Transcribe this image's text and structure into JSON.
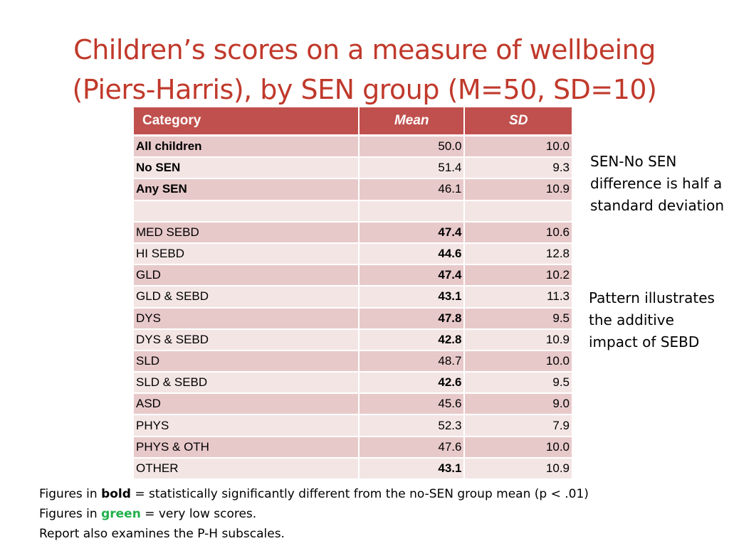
{
  "title": {
    "line1": "Children’s scores on a measure of wellbeing",
    "line2": "(Piers-Harris), by SEN group (M=50, SD=10)"
  },
  "colors": {
    "title": "#c0392b",
    "header_bg": "#c0504d",
    "row_dark": "#e8c9ca",
    "row_light": "#f4e5e5",
    "green": "#22b14c"
  },
  "table": {
    "headers": {
      "category": "Category",
      "mean": "Mean",
      "sd": "SD"
    },
    "rows": [
      {
        "category": "All children",
        "mean": "50.0",
        "sd": "10.0"
      },
      {
        "category": "No SEN",
        "mean": "51.4",
        "sd": "9.3"
      },
      {
        "category": "Any SEN",
        "mean": "46.1",
        "sd": "10.9"
      },
      {
        "category": "",
        "mean": "",
        "sd": ""
      },
      {
        "category": "MED SEBD",
        "mean": "47.4",
        "sd": "10.6"
      },
      {
        "category": "HI SEBD",
        "mean": "44.6",
        "sd": "12.8"
      },
      {
        "category": "GLD",
        "mean": "47.4",
        "sd": "10.2"
      },
      {
        "category": "GLD & SEBD",
        "mean": "43.1",
        "sd": "11.3"
      },
      {
        "category": "DYS",
        "mean": "47.8",
        "sd": "9.5"
      },
      {
        "category": "DYS & SEBD",
        "mean": "42.8",
        "sd": "10.9"
      },
      {
        "category": "SLD",
        "mean": "48.7",
        "sd": "10.0"
      },
      {
        "category": "SLD & SEBD",
        "mean": "42.6",
        "sd": "9.5"
      },
      {
        "category": "ASD",
        "mean": "45.6",
        "sd": "9.0"
      },
      {
        "category": "PHYS",
        "mean": "52.3",
        "sd": "7.9"
      },
      {
        "category": "PHYS & OTH",
        "mean": "47.6",
        "sd": "10.0"
      },
      {
        "category": "OTHER",
        "mean": "43.1",
        "sd": "10.9"
      }
    ]
  },
  "notes": {
    "sen_difference": "SEN-No SEN difference is half a standard deviation",
    "pattern": "Pattern illustrates the additive impact of SEBD"
  },
  "footer": {
    "line1_prefix": "Figures in ",
    "line1_bold": "bold",
    "line1_suffix": " = statistically significantly different from the no-SEN group mean (p < .01)",
    "line2_prefix": "Figures in ",
    "line2_green": "green",
    "line2_suffix": " = very low scores.",
    "line3": "Report also examines the P-H subscales."
  }
}
